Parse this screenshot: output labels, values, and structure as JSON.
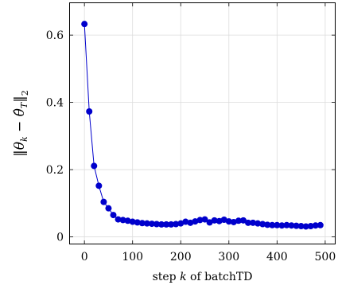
{
  "chart_data": {
    "type": "line",
    "xlabel_prefix": "step ",
    "xlabel_var": "k",
    "xlabel_suffix": " of batchTD",
    "ylabel": "‖θk − θ̂T‖2",
    "xlim": [
      -30,
      520
    ],
    "ylim": [
      -0.02,
      0.695
    ],
    "xticks": [
      0,
      100,
      200,
      300,
      400,
      500
    ],
    "yticks": [
      0,
      0.2,
      0.4,
      0.6
    ],
    "grid": true,
    "series": [
      {
        "color": "#0000cc",
        "x": [
          0,
          10,
          20,
          30,
          40,
          50,
          60,
          70,
          80,
          90,
          100,
          110,
          120,
          130,
          140,
          150,
          160,
          170,
          180,
          190,
          200,
          210,
          220,
          230,
          240,
          250,
          260,
          270,
          280,
          290,
          300,
          310,
          320,
          330,
          340,
          350,
          360,
          370,
          380,
          390,
          400,
          410,
          420,
          430,
          440,
          450,
          460,
          470,
          480,
          490
        ],
        "y": [
          0.633,
          0.373,
          0.211,
          0.152,
          0.104,
          0.085,
          0.065,
          0.052,
          0.05,
          0.048,
          0.045,
          0.043,
          0.041,
          0.04,
          0.039,
          0.038,
          0.037,
          0.037,
          0.037,
          0.038,
          0.04,
          0.045,
          0.042,
          0.046,
          0.05,
          0.052,
          0.043,
          0.049,
          0.047,
          0.051,
          0.046,
          0.044,
          0.048,
          0.049,
          0.042,
          0.042,
          0.04,
          0.038,
          0.036,
          0.035,
          0.035,
          0.034,
          0.035,
          0.034,
          0.033,
          0.032,
          0.031,
          0.032,
          0.034,
          0.035
        ]
      }
    ]
  }
}
